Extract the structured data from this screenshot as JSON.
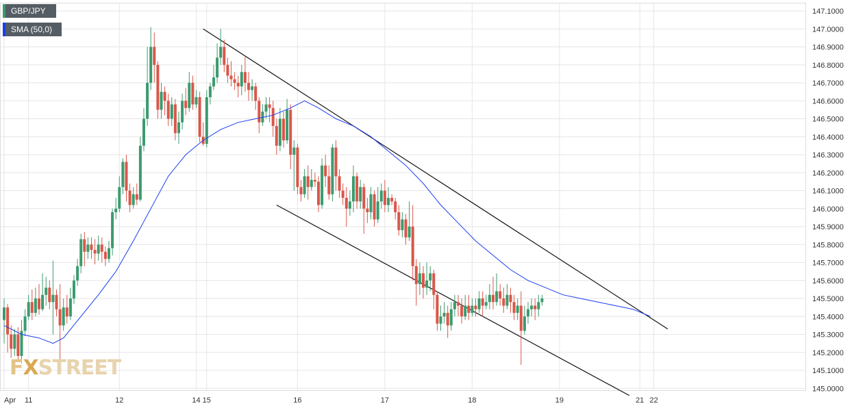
{
  "legend": {
    "pair": {
      "label": "GBP/JPY",
      "color": "#3c9b6e"
    },
    "sma": {
      "label": "SMA (50,0)",
      "color": "#1a3cf0"
    }
  },
  "watermark": {
    "fx": "F",
    "x": "X",
    "rest": "STREET"
  },
  "colors": {
    "up": "#3c9b6e",
    "down": "#d9574a",
    "sma": "#1a3cf0",
    "grid": "#e6e6e6",
    "trendline": "#111111"
  },
  "chart_data": {
    "type": "candlestick",
    "title": "",
    "xlabel": "",
    "ylabel": "",
    "ylim": [
      144.95,
      147.12
    ],
    "grid": true,
    "y_ticks": [
      "147.1000",
      "147.0000",
      "146.9000",
      "146.8000",
      "146.7000",
      "146.6000",
      "146.5000",
      "146.4000",
      "146.3000",
      "146.2000",
      "146.1000",
      "146.0000",
      "145.9000",
      "145.8000",
      "145.7000",
      "145.6000",
      "145.5000",
      "145.4000",
      "145.3000",
      "145.2000",
      "145.1000",
      "145.0000"
    ],
    "x_ticks": [
      {
        "label": "Apr",
        "bar": 0
      },
      {
        "label": "11",
        "bar": 7
      },
      {
        "label": "12",
        "bar": 33
      },
      {
        "label": "14",
        "bar": 55
      },
      {
        "label": "15",
        "bar": 58
      },
      {
        "label": "16",
        "bar": 84
      },
      {
        "label": "17",
        "bar": 109
      },
      {
        "label": "18",
        "bar": 134
      },
      {
        "label": "19",
        "bar": 159
      },
      {
        "label": "21",
        "bar": 182
      },
      {
        "label": "22",
        "bar": 186
      }
    ],
    "candles": [
      [
        145.38,
        145.45,
        145.5,
        145.25
      ],
      [
        145.45,
        145.3,
        145.47,
        145.2
      ],
      [
        145.3,
        145.22,
        145.35,
        145.17
      ],
      [
        145.22,
        145.3,
        145.33,
        145.18
      ],
      [
        145.3,
        145.18,
        145.34,
        145.15
      ],
      [
        145.18,
        145.32,
        145.38,
        145.14
      ],
      [
        145.32,
        145.4,
        145.44,
        145.29
      ],
      [
        145.4,
        145.48,
        145.52,
        145.38
      ],
      [
        145.48,
        145.42,
        145.55,
        145.38
      ],
      [
        145.42,
        145.5,
        145.56,
        145.4
      ],
      [
        145.5,
        145.44,
        145.58,
        145.41
      ],
      [
        145.44,
        145.52,
        145.64,
        145.43
      ],
      [
        145.52,
        145.56,
        145.62,
        145.46
      ],
      [
        145.56,
        145.48,
        145.6,
        145.44
      ],
      [
        145.48,
        145.52,
        145.71,
        145.3
      ],
      [
        145.52,
        145.44,
        145.55,
        145.4
      ],
      [
        145.44,
        145.35,
        145.58,
        145.13
      ],
      [
        145.35,
        145.45,
        145.5,
        145.32
      ],
      [
        145.45,
        145.4,
        145.52,
        145.36
      ],
      [
        145.4,
        145.5,
        145.56,
        145.38
      ],
      [
        145.5,
        145.6,
        145.63,
        145.47
      ],
      [
        145.6,
        145.68,
        145.72,
        145.57
      ],
      [
        145.68,
        145.83,
        145.86,
        145.64
      ],
      [
        145.83,
        145.76,
        145.87,
        145.68
      ],
      [
        145.76,
        145.8,
        145.84,
        145.72
      ],
      [
        145.8,
        145.77,
        145.84,
        145.72
      ],
      [
        145.77,
        145.75,
        145.83,
        145.69
      ],
      [
        145.75,
        145.8,
        145.85,
        145.71
      ],
      [
        145.8,
        145.76,
        145.84,
        145.7
      ],
      [
        145.76,
        145.72,
        145.79,
        145.68
      ],
      [
        145.72,
        145.78,
        145.82,
        145.7
      ],
      [
        145.78,
        145.98,
        146.0,
        145.74
      ],
      [
        145.98,
        146.0,
        146.06,
        145.94
      ],
      [
        146.0,
        146.12,
        146.18,
        145.98
      ],
      [
        146.12,
        146.26,
        146.28,
        146.08
      ],
      [
        146.26,
        146.1,
        146.3,
        146.04
      ],
      [
        146.1,
        146.02,
        146.14,
        145.98
      ],
      [
        146.02,
        146.08,
        146.12,
        146.0
      ],
      [
        146.08,
        146.05,
        146.14,
        146.02
      ],
      [
        146.05,
        146.35,
        146.4,
        146.04
      ],
      [
        146.35,
        146.5,
        146.56,
        146.32
      ],
      [
        146.5,
        146.7,
        146.9,
        146.46
      ],
      [
        146.7,
        146.9,
        147.01,
        146.66
      ],
      [
        146.9,
        146.8,
        146.98,
        146.7
      ],
      [
        146.8,
        146.55,
        146.82,
        146.5
      ],
      [
        146.55,
        146.65,
        146.7,
        146.5
      ],
      [
        146.65,
        146.6,
        146.68,
        146.52
      ],
      [
        146.6,
        146.5,
        146.64,
        146.46
      ],
      [
        146.5,
        146.58,
        146.62,
        146.46
      ],
      [
        146.58,
        146.42,
        146.61,
        146.38
      ],
      [
        146.42,
        146.48,
        146.54,
        146.36
      ],
      [
        146.48,
        146.6,
        146.64,
        146.44
      ],
      [
        146.6,
        146.56,
        146.67,
        146.52
      ],
      [
        146.56,
        146.7,
        146.76,
        146.54
      ],
      [
        146.7,
        146.58,
        146.74,
        146.55
      ],
      [
        146.58,
        146.62,
        146.66,
        146.56
      ],
      [
        146.62,
        146.4,
        146.65,
        146.37
      ],
      [
        146.4,
        146.36,
        146.48,
        146.35
      ],
      [
        146.36,
        146.62,
        146.66,
        146.34
      ],
      [
        146.62,
        146.68,
        146.7,
        146.58
      ],
      [
        146.68,
        146.73,
        146.8,
        146.66
      ],
      [
        146.73,
        146.84,
        146.92,
        146.7
      ],
      [
        146.84,
        146.9,
        147.0,
        146.8
      ],
      [
        146.9,
        146.8,
        146.94,
        146.76
      ],
      [
        146.8,
        146.74,
        146.84,
        146.7
      ],
      [
        146.74,
        146.72,
        146.82,
        146.68
      ],
      [
        146.72,
        146.7,
        146.76,
        146.66
      ],
      [
        146.7,
        146.68,
        146.74,
        146.62
      ],
      [
        146.68,
        146.76,
        146.8,
        146.63
      ],
      [
        146.76,
        146.7,
        146.85,
        146.65
      ],
      [
        146.7,
        146.66,
        146.76,
        146.6
      ],
      [
        146.66,
        146.68,
        146.72,
        146.6
      ],
      [
        146.68,
        146.6,
        146.7,
        146.55
      ],
      [
        146.6,
        146.48,
        146.62,
        146.42
      ],
      [
        146.48,
        146.54,
        146.58,
        146.46
      ],
      [
        146.54,
        146.58,
        146.62,
        146.5
      ],
      [
        146.58,
        146.56,
        146.62,
        146.48
      ],
      [
        146.56,
        146.46,
        146.6,
        146.4
      ],
      [
        146.46,
        146.35,
        146.5,
        146.3
      ],
      [
        146.35,
        146.5,
        146.56,
        146.32
      ],
      [
        146.5,
        146.38,
        146.54,
        146.34
      ],
      [
        146.38,
        146.55,
        146.61,
        146.36
      ],
      [
        146.55,
        146.3,
        146.58,
        146.22
      ],
      [
        146.3,
        146.34,
        146.38,
        146.1
      ],
      [
        146.34,
        146.12,
        146.36,
        146.08
      ],
      [
        146.12,
        146.08,
        146.16,
        146.04
      ],
      [
        146.08,
        146.18,
        146.22,
        146.06
      ],
      [
        146.18,
        146.12,
        146.24,
        146.05
      ],
      [
        146.12,
        146.16,
        146.22,
        146.1
      ],
      [
        146.16,
        146.15,
        146.2,
        146.12
      ],
      [
        146.15,
        146.02,
        146.18,
        145.98
      ],
      [
        146.02,
        146.24,
        146.28,
        146.0
      ],
      [
        146.24,
        146.18,
        146.3,
        146.12
      ],
      [
        146.18,
        146.08,
        146.24,
        146.05
      ],
      [
        146.08,
        146.34,
        146.36,
        146.04
      ],
      [
        146.34,
        146.18,
        146.38,
        146.1
      ],
      [
        146.18,
        146.1,
        146.22,
        146.06
      ],
      [
        146.1,
        146.06,
        146.14,
        146.02
      ],
      [
        146.06,
        146.0,
        146.12,
        145.9
      ],
      [
        146.0,
        146.04,
        146.1,
        145.96
      ],
      [
        146.04,
        146.18,
        146.24,
        145.98
      ],
      [
        146.18,
        146.04,
        146.2,
        146.0
      ],
      [
        146.04,
        146.12,
        146.16,
        146.0
      ],
      [
        146.12,
        146.0,
        146.14,
        145.86
      ],
      [
        146.0,
        145.98,
        146.06,
        145.92
      ],
      [
        145.98,
        146.08,
        146.12,
        145.94
      ],
      [
        146.08,
        145.94,
        146.1,
        145.9
      ],
      [
        145.94,
        146.04,
        146.12,
        145.92
      ],
      [
        146.04,
        146.1,
        146.14,
        146.0
      ],
      [
        146.1,
        146.02,
        146.16,
        145.98
      ],
      [
        146.02,
        146.06,
        146.12,
        145.98
      ],
      [
        146.06,
        146.04,
        146.08,
        146.02
      ],
      [
        146.04,
        145.98,
        146.06,
        145.94
      ],
      [
        145.98,
        145.88,
        146.02,
        145.85
      ],
      [
        145.88,
        145.94,
        145.98,
        145.84
      ],
      [
        145.94,
        145.84,
        145.97,
        145.8
      ],
      [
        145.84,
        145.9,
        146.04,
        145.82
      ],
      [
        145.9,
        145.68,
        146.02,
        145.6
      ],
      [
        145.68,
        145.58,
        145.72,
        145.46
      ],
      [
        145.58,
        145.64,
        145.7,
        145.52
      ],
      [
        145.64,
        145.56,
        145.68,
        145.5
      ],
      [
        145.56,
        145.6,
        145.7,
        145.52
      ],
      [
        145.6,
        145.64,
        145.68,
        145.54
      ],
      [
        145.64,
        145.52,
        145.66,
        145.44
      ],
      [
        145.52,
        145.36,
        145.54,
        145.32
      ],
      [
        145.36,
        145.4,
        145.46,
        145.32
      ],
      [
        145.4,
        145.42,
        145.48,
        145.36
      ],
      [
        145.42,
        145.35,
        145.46,
        145.28
      ],
      [
        145.35,
        145.44,
        145.48,
        145.32
      ],
      [
        145.44,
        145.48,
        145.52,
        145.4
      ],
      [
        145.48,
        145.46,
        145.52,
        145.4
      ],
      [
        145.46,
        145.4,
        145.5,
        145.36
      ],
      [
        145.4,
        145.46,
        145.52,
        145.38
      ],
      [
        145.46,
        145.42,
        145.52,
        145.38
      ],
      [
        145.42,
        145.46,
        145.5,
        145.4
      ],
      [
        145.46,
        145.44,
        145.5,
        145.4
      ],
      [
        145.44,
        145.5,
        145.54,
        145.42
      ],
      [
        145.5,
        145.46,
        145.54,
        145.4
      ],
      [
        145.46,
        145.48,
        145.52,
        145.44
      ],
      [
        145.48,
        145.52,
        145.58,
        145.44
      ],
      [
        145.52,
        145.48,
        145.62,
        145.44
      ],
      [
        145.48,
        145.54,
        145.64,
        145.46
      ],
      [
        145.54,
        145.5,
        145.58,
        145.46
      ],
      [
        145.5,
        145.46,
        145.56,
        145.42
      ],
      [
        145.46,
        145.52,
        145.58,
        145.44
      ],
      [
        145.52,
        145.48,
        145.56,
        145.42
      ],
      [
        145.48,
        145.42,
        145.52,
        145.38
      ],
      [
        145.42,
        145.46,
        145.5,
        145.38
      ],
      [
        145.46,
        145.32,
        145.54,
        145.13
      ],
      [
        145.32,
        145.4,
        145.46,
        145.3
      ],
      [
        145.4,
        145.44,
        145.48,
        145.36
      ],
      [
        145.44,
        145.46,
        145.5,
        145.4
      ],
      [
        145.46,
        145.44,
        145.5,
        145.38
      ],
      [
        145.44,
        145.48,
        145.52,
        145.4
      ],
      [
        145.48,
        145.5,
        145.52,
        145.46
      ]
    ],
    "sma": [
      [
        0,
        145.35
      ],
      [
        5,
        145.3
      ],
      [
        10,
        145.28
      ],
      [
        14,
        145.25
      ],
      [
        17,
        145.28
      ],
      [
        22,
        145.4
      ],
      [
        27,
        145.52
      ],
      [
        32,
        145.65
      ],
      [
        37,
        145.82
      ],
      [
        42,
        146.0
      ],
      [
        47,
        146.18
      ],
      [
        52,
        146.3
      ],
      [
        57,
        146.38
      ],
      [
        62,
        146.44
      ],
      [
        67,
        146.48
      ],
      [
        72,
        146.5
      ],
      [
        77,
        146.52
      ],
      [
        82,
        146.56
      ],
      [
        86,
        146.6
      ],
      [
        90,
        146.56
      ],
      [
        95,
        146.5
      ],
      [
        100,
        146.46
      ],
      [
        105,
        146.4
      ],
      [
        110,
        146.32
      ],
      [
        115,
        146.24
      ],
      [
        120,
        146.14
      ],
      [
        125,
        146.02
      ],
      [
        130,
        145.92
      ],
      [
        135,
        145.82
      ],
      [
        140,
        145.74
      ],
      [
        145,
        145.66
      ],
      [
        150,
        145.6
      ],
      [
        155,
        145.56
      ],
      [
        160,
        145.52
      ],
      [
        165,
        145.5
      ],
      [
        170,
        145.48
      ],
      [
        175,
        145.46
      ],
      [
        180,
        145.44
      ],
      [
        185,
        145.4
      ]
    ],
    "trendlines": [
      {
        "from": [
          57,
          147.0
        ],
        "to": [
          190,
          145.33
        ]
      },
      {
        "from": [
          78,
          146.02
        ],
        "to": [
          179,
          144.96
        ]
      }
    ]
  }
}
